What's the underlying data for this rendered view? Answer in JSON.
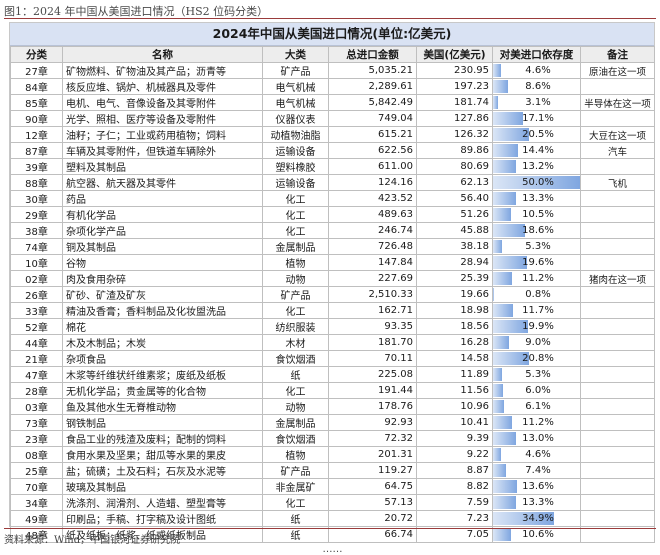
{
  "figure": {
    "caption": "图1：2024 年中国从美国进口情况（HS2 位码分类）",
    "source": "资料来源：Wind，中国银河证券研究院"
  },
  "table": {
    "title": "2024年中国从美国进口情况(单位:亿美元)",
    "headers": [
      "分类",
      "名称",
      "大类",
      "总进口金额",
      "美国(亿美元)",
      "对美进口依存度",
      "备注"
    ],
    "rows": [
      {
        "code": "27章",
        "name": "矿物燃料、矿物油及其产品；沥青等",
        "cat": "矿产品",
        "total": "5,035.21",
        "us": "230.95",
        "dep": "4.6%",
        "pct": 4.6,
        "note": "原油在这一项"
      },
      {
        "code": "84章",
        "name": "核反应堆、锅炉、机械器具及零件",
        "cat": "电气机械",
        "total": "2,289.61",
        "us": "197.23",
        "dep": "8.6%",
        "pct": 8.6,
        "note": ""
      },
      {
        "code": "85章",
        "name": "电机、电气、音像设备及其零附件",
        "cat": "电气机械",
        "total": "5,842.49",
        "us": "181.74",
        "dep": "3.1%",
        "pct": 3.1,
        "note": "半导体在这一项"
      },
      {
        "code": "90章",
        "name": "光学、照相、医疗等设备及零附件",
        "cat": "仪器仪表",
        "total": "749.04",
        "us": "127.86",
        "dep": "17.1%",
        "pct": 17.1,
        "note": ""
      },
      {
        "code": "12章",
        "name": "油籽；子仁；工业或药用植物；饲料",
        "cat": "动植物油脂",
        "total": "615.21",
        "us": "126.32",
        "dep": "20.5%",
        "pct": 20.5,
        "note": "大豆在这一项"
      },
      {
        "code": "87章",
        "name": "车辆及其零附件，但铁道车辆除外",
        "cat": "运输设备",
        "total": "622.56",
        "us": "89.86",
        "dep": "14.4%",
        "pct": 14.4,
        "note": "汽车"
      },
      {
        "code": "39章",
        "name": "塑料及其制品",
        "cat": "塑料橡胶",
        "total": "611.00",
        "us": "80.69",
        "dep": "13.2%",
        "pct": 13.2,
        "note": ""
      },
      {
        "code": "88章",
        "name": "航空器、航天器及其零件",
        "cat": "运输设备",
        "total": "124.16",
        "us": "62.13",
        "dep": "50.0%",
        "pct": 50.0,
        "note": "飞机"
      },
      {
        "code": "30章",
        "name": "药品",
        "cat": "化工",
        "total": "423.52",
        "us": "56.40",
        "dep": "13.3%",
        "pct": 13.3,
        "note": ""
      },
      {
        "code": "29章",
        "name": "有机化学品",
        "cat": "化工",
        "total": "489.63",
        "us": "51.26",
        "dep": "10.5%",
        "pct": 10.5,
        "note": ""
      },
      {
        "code": "38章",
        "name": "杂项化学产品",
        "cat": "化工",
        "total": "246.74",
        "us": "45.88",
        "dep": "18.6%",
        "pct": 18.6,
        "note": ""
      },
      {
        "code": "74章",
        "name": "铜及其制品",
        "cat": "金属制品",
        "total": "726.48",
        "us": "38.18",
        "dep": "5.3%",
        "pct": 5.3,
        "note": ""
      },
      {
        "code": "10章",
        "name": "谷物",
        "cat": "植物",
        "total": "147.84",
        "us": "28.94",
        "dep": "19.6%",
        "pct": 19.6,
        "note": ""
      },
      {
        "code": "02章",
        "name": "肉及食用杂碎",
        "cat": "动物",
        "total": "227.69",
        "us": "25.39",
        "dep": "11.2%",
        "pct": 11.2,
        "note": "猪肉在这一项"
      },
      {
        "code": "26章",
        "name": "矿砂、矿渣及矿灰",
        "cat": "矿产品",
        "total": "2,510.33",
        "us": "19.66",
        "dep": "0.8%",
        "pct": 0.8,
        "note": ""
      },
      {
        "code": "33章",
        "name": "精油及香膏；香料制品及化妆盥洗品",
        "cat": "化工",
        "total": "162.71",
        "us": "18.98",
        "dep": "11.7%",
        "pct": 11.7,
        "note": ""
      },
      {
        "code": "52章",
        "name": "棉花",
        "cat": "纺织服装",
        "total": "93.35",
        "us": "18.56",
        "dep": "19.9%",
        "pct": 19.9,
        "note": ""
      },
      {
        "code": "44章",
        "name": "木及木制品；木炭",
        "cat": "木材",
        "total": "181.70",
        "us": "16.28",
        "dep": "9.0%",
        "pct": 9.0,
        "note": ""
      },
      {
        "code": "21章",
        "name": "杂项食品",
        "cat": "食饮烟酒",
        "total": "70.11",
        "us": "14.58",
        "dep": "20.8%",
        "pct": 20.8,
        "note": ""
      },
      {
        "code": "47章",
        "name": "木浆等纤维状纤维素浆；废纸及纸板",
        "cat": "纸",
        "total": "225.08",
        "us": "11.89",
        "dep": "5.3%",
        "pct": 5.3,
        "note": ""
      },
      {
        "code": "28章",
        "name": "无机化学品；贵金属等的化合物",
        "cat": "化工",
        "total": "191.44",
        "us": "11.56",
        "dep": "6.0%",
        "pct": 6.0,
        "note": ""
      },
      {
        "code": "03章",
        "name": "鱼及其他水生无脊椎动物",
        "cat": "动物",
        "total": "178.76",
        "us": "10.96",
        "dep": "6.1%",
        "pct": 6.1,
        "note": ""
      },
      {
        "code": "73章",
        "name": "钢铁制品",
        "cat": "金属制品",
        "total": "92.93",
        "us": "10.41",
        "dep": "11.2%",
        "pct": 11.2,
        "note": ""
      },
      {
        "code": "23章",
        "name": "食品工业的残渣及废料；配制的饲料",
        "cat": "食饮烟酒",
        "total": "72.32",
        "us": "9.39",
        "dep": "13.0%",
        "pct": 13.0,
        "note": ""
      },
      {
        "code": "08章",
        "name": "食用水果及坚果；甜瓜等水果的果皮",
        "cat": "植物",
        "total": "201.31",
        "us": "9.22",
        "dep": "4.6%",
        "pct": 4.6,
        "note": ""
      },
      {
        "code": "25章",
        "name": "盐；硫磺；土及石料；石灰及水泥等",
        "cat": "矿产品",
        "total": "119.27",
        "us": "8.87",
        "dep": "7.4%",
        "pct": 7.4,
        "note": ""
      },
      {
        "code": "70章",
        "name": "玻璃及其制品",
        "cat": "非金属矿",
        "total": "64.75",
        "us": "8.82",
        "dep": "13.6%",
        "pct": 13.6,
        "note": ""
      },
      {
        "code": "34章",
        "name": "洗涤剂、润滑剂、人造蜡、塑型膏等",
        "cat": "化工",
        "total": "57.13",
        "us": "7.59",
        "dep": "13.3%",
        "pct": 13.3,
        "note": ""
      },
      {
        "code": "49章",
        "name": "印刷品；手稿、打字稿及设计图纸",
        "cat": "纸",
        "total": "20.72",
        "us": "7.23",
        "dep": "34.9%",
        "pct": 34.9,
        "note": ""
      },
      {
        "code": "48章",
        "name": "纸及纸板；纸浆、纸或纸板制品",
        "cat": "纸",
        "total": "66.74",
        "us": "7.05",
        "dep": "10.6%",
        "pct": 10.6,
        "note": ""
      }
    ],
    "ellipsis": "……"
  }
}
